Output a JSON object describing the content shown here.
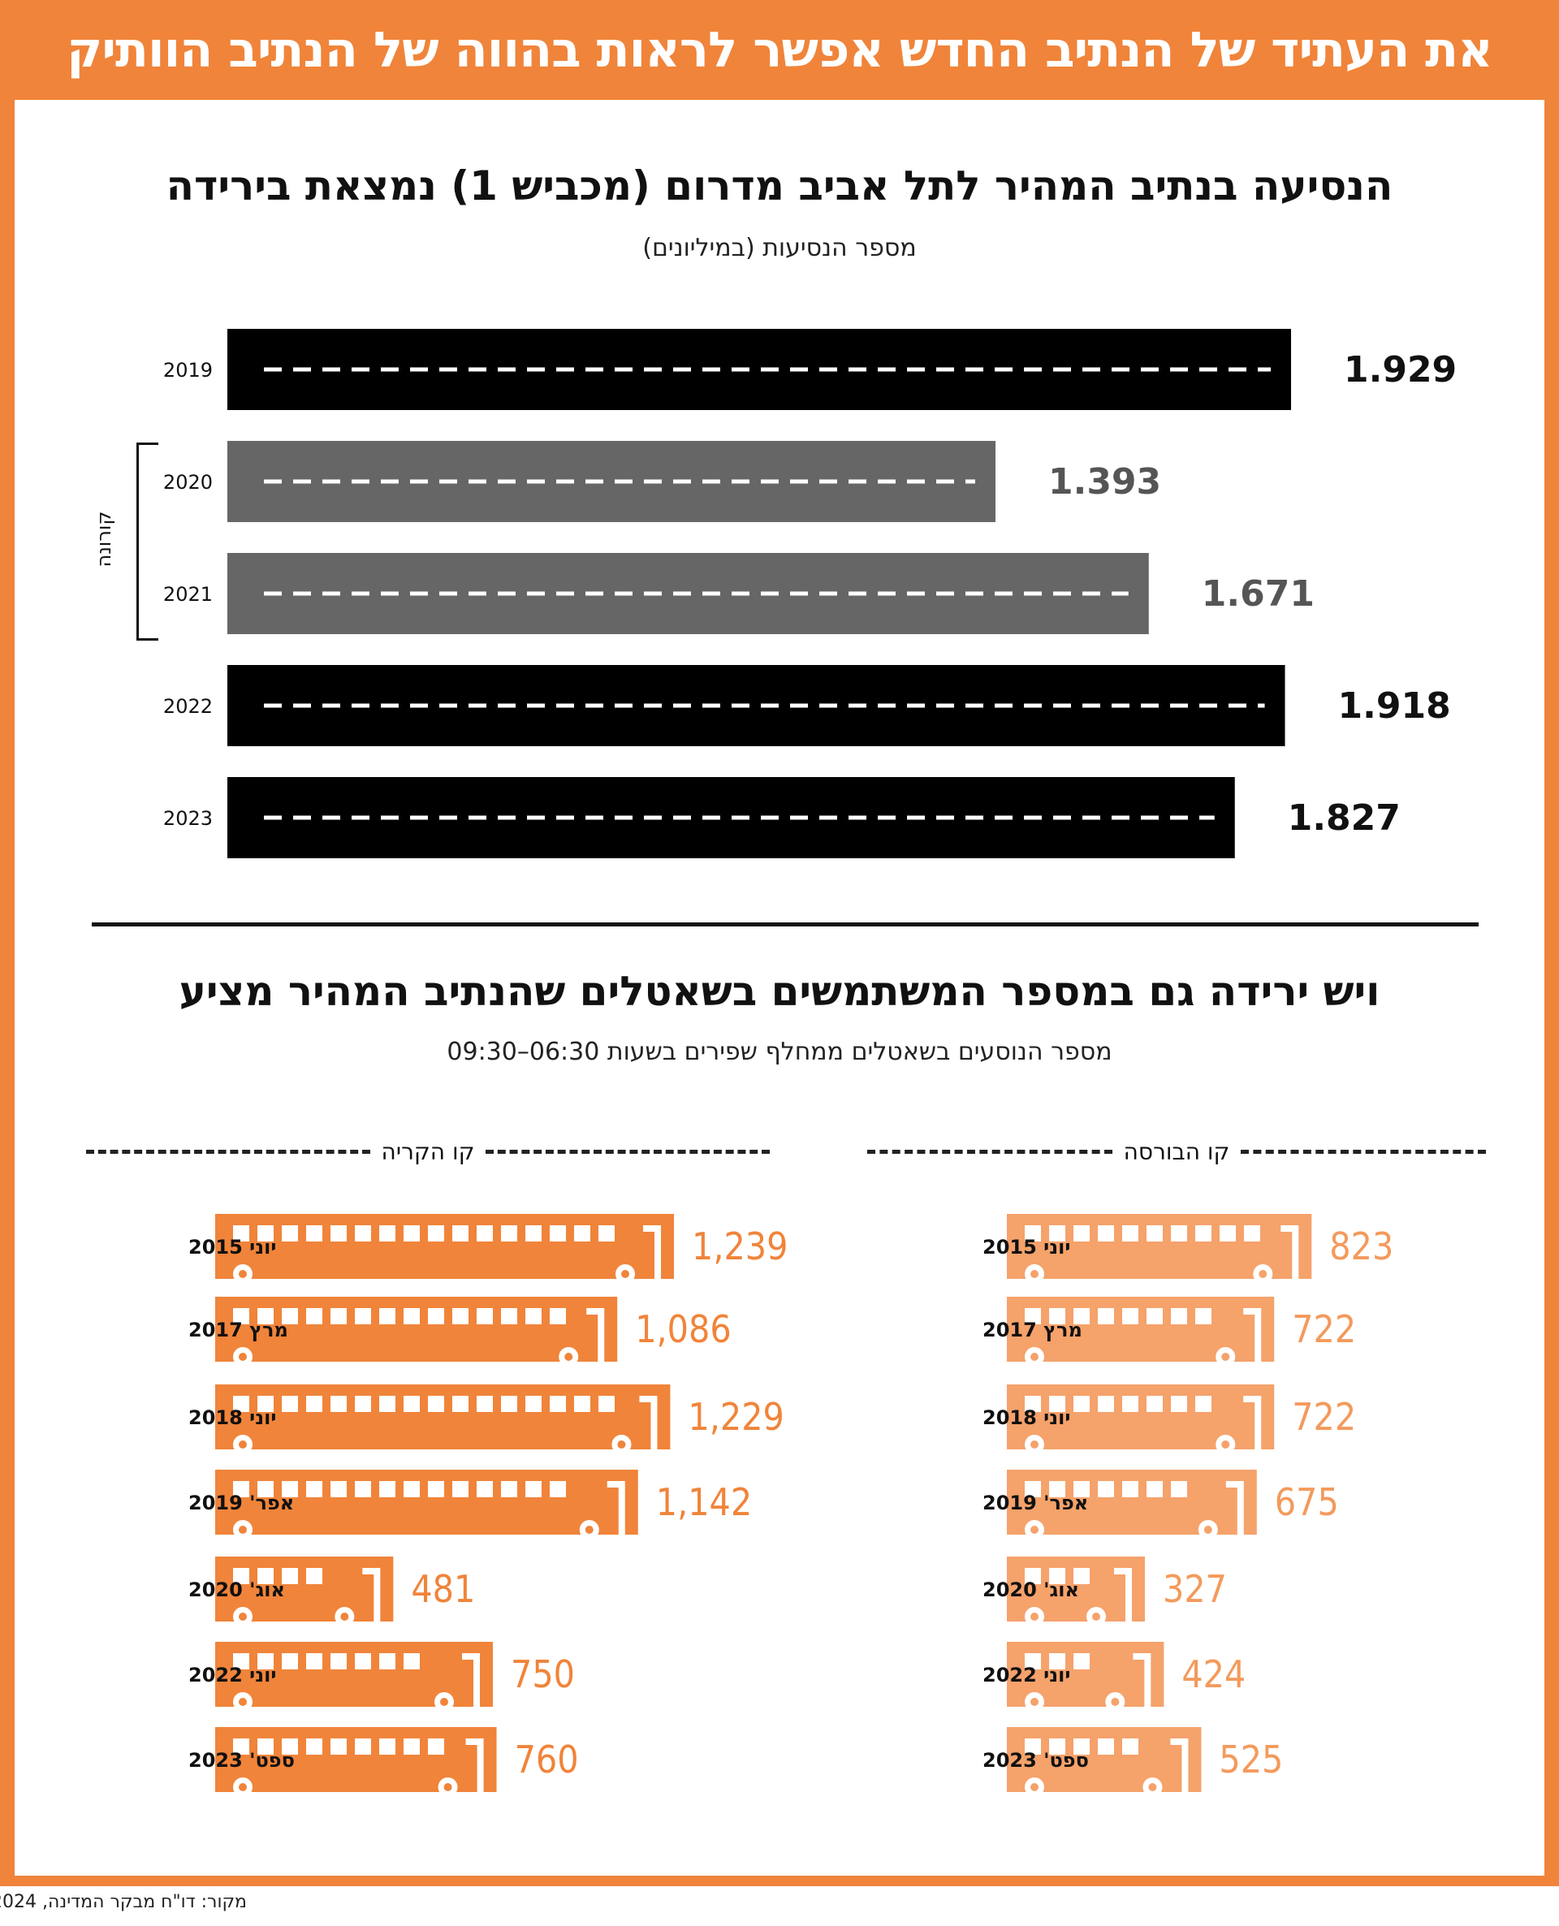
{
  "title": "את העתיד של הנתיב החדש אפשר לראות בהווה של הנתיב הוותיק",
  "colors": {
    "frame": "#f0843a",
    "bar_dark": "#000000",
    "bar_corona": "#666666",
    "bus_kirya": "#f0843a",
    "bus_bursa": "#f5a26b"
  },
  "section1": {
    "title": "הנסיעה בנתיב המהיר לתל אביב מדרום (מכביש 1) נמצאת בירידה",
    "subtitle": "מספר הנסיעות (במיליונים)",
    "corona_label": "קורונה"
  },
  "section2": {
    "title": "ויש ירידה גם במספר המשתמשים בשאטלים שהנתיב המהיר מציע",
    "subtitle": "מספר הנוסעים בשאטלים ממחלף שפירים בשעות 06:30–09:30",
    "left_line": "קו הקריה",
    "right_line": "קו הבורסה"
  },
  "source": "מקור: דו\"ח מבקר המדינה, 2024",
  "chart_data": [
    {
      "type": "bar",
      "categories": [
        "2019",
        "2020",
        "2021",
        "2022",
        "2023"
      ],
      "values": [
        1.929,
        1.393,
        1.671,
        1.918,
        1.827
      ],
      "value_labels": [
        "1.929",
        "1.393",
        "1.671",
        "1.918",
        "1.827"
      ],
      "highlight": [
        "normal",
        "corona",
        "corona",
        "normal",
        "normal"
      ],
      "title": "הנסיעה בנתיב המהיר לתל אביב מדרום (מכביש 1) נמצאת בירידה",
      "ylabel": "מספר הנסיעות (במיליונים)"
    },
    {
      "type": "bar",
      "series_name": "קו הקריה",
      "categories": [
        "יוני 2015",
        "מרץ 2017",
        "יוני 2018",
        "אפר' 2019",
        "אוג' 2020",
        "יוני 2022",
        "ספט' 2023"
      ],
      "values": [
        1239,
        1086,
        1229,
        1142,
        481,
        750,
        760
      ],
      "value_labels": [
        "1,239",
        "1,086",
        "1,229",
        "1,142",
        "481",
        "750",
        "760"
      ]
    },
    {
      "type": "bar",
      "series_name": "קו הבורסה",
      "categories": [
        "יוני 2015",
        "מרץ 2017",
        "יוני 2018",
        "אפר' 2019",
        "אוג' 2020",
        "יוני 2022",
        "ספט' 2023"
      ],
      "values": [
        823,
        722,
        722,
        675,
        327,
        424,
        525
      ],
      "value_labels": [
        "823",
        "722",
        "722",
        "675",
        "327",
        "424",
        "525"
      ]
    }
  ]
}
